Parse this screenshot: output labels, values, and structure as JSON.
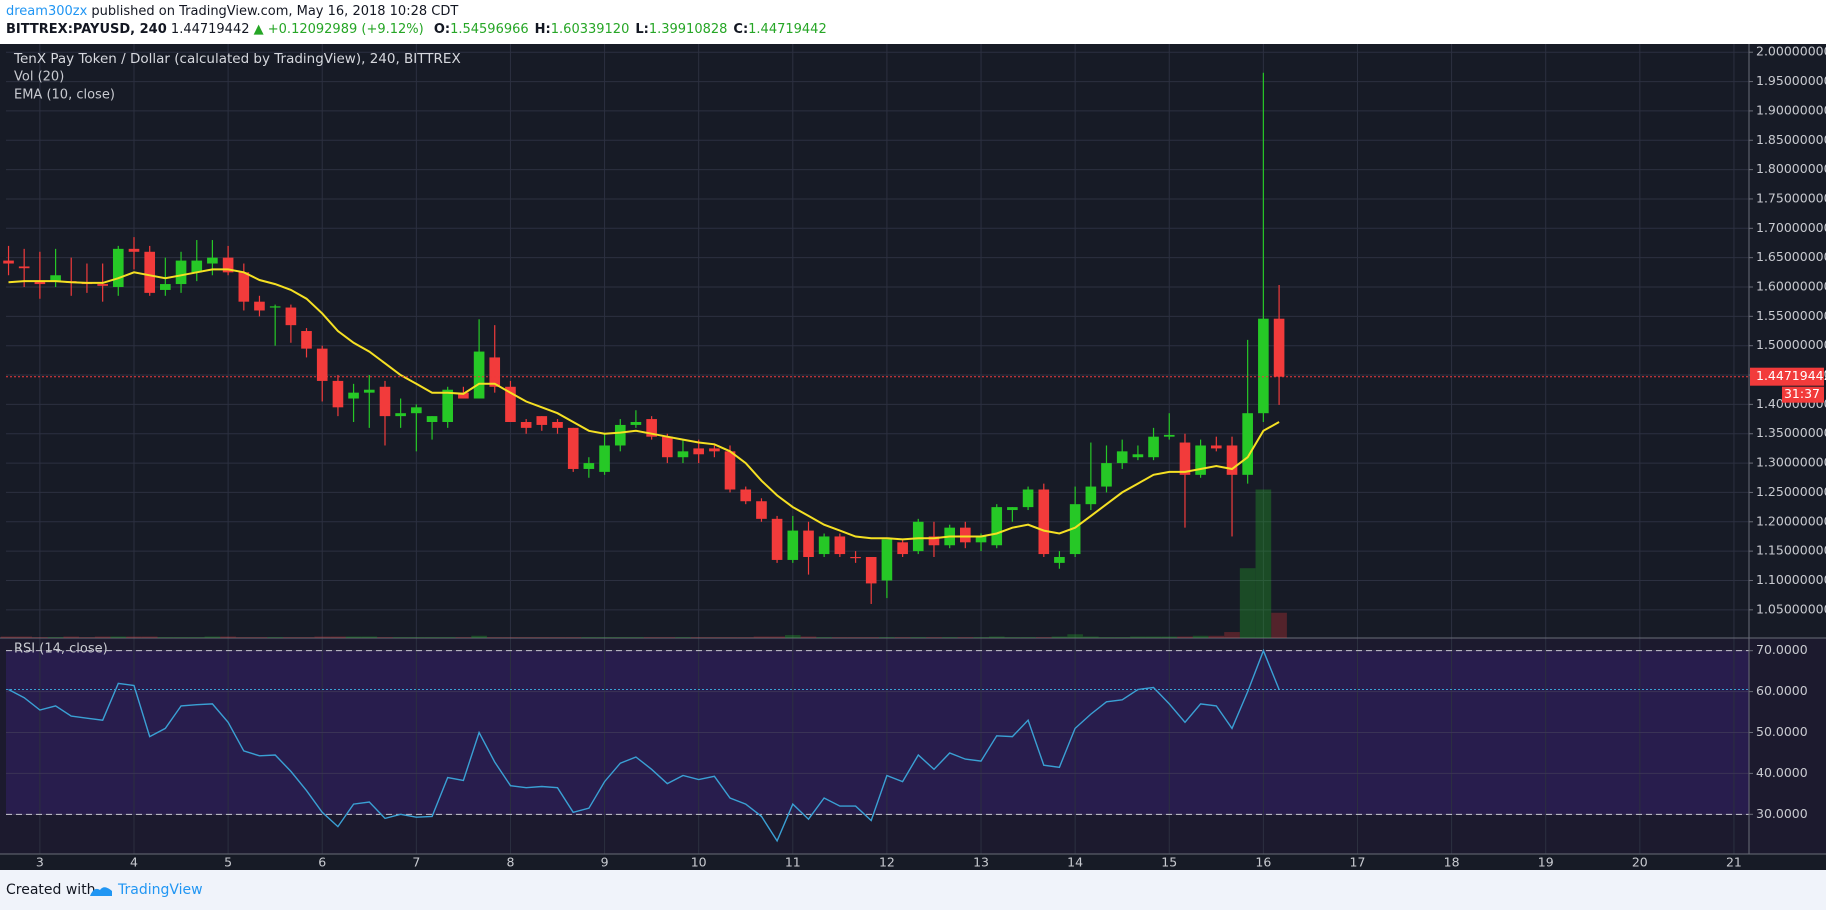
{
  "header": {
    "author": "dream300zx",
    "published": "published on TradingView.com, May 16, 2018 10:28 CDT",
    "symbol": "BITTREX:PAYUSD, 240",
    "last": "1.44719442",
    "change": "▲ +0.12092989 (+9.12%)",
    "ohlc": [
      {
        "key": "O:",
        "value": "1.54596966"
      },
      {
        "key": "H:",
        "value": "1.60339120"
      },
      {
        "key": "L:",
        "value": "1.39910828"
      },
      {
        "key": "C:",
        "value": "1.44719442"
      }
    ]
  },
  "footer": {
    "created": "Created with",
    "brand": "TradingView"
  },
  "chart_data": {
    "type": "candlestick",
    "title": "TenX Pay Token / Dollar (calculated by TradingView), 240, BITTREX",
    "volume_label": "Vol (20)",
    "ema_label": "EMA (10, close)",
    "rsi_label": "RSI (14, close)",
    "countdown": "31:37",
    "up_color": "#26c826",
    "down_color": "#f23b3b",
    "ema_color": "#f5e023",
    "rsi_color": "#3aa0d4",
    "x": [
      2.667,
      2.833,
      3,
      3.167,
      3.333,
      3.5,
      3.667,
      3.833,
      4,
      4.167,
      4.333,
      4.5,
      4.667,
      4.833,
      5,
      5.167,
      5.333,
      5.5,
      5.667,
      5.833,
      6,
      6.167,
      6.333,
      6.5,
      6.667,
      6.833,
      7,
      7.167,
      7.333,
      7.5,
      7.667,
      7.833,
      8,
      8.167,
      8.333,
      8.5,
      8.667,
      8.833,
      9,
      9.167,
      9.333,
      9.5,
      9.667,
      9.833,
      10,
      10.167,
      10.333,
      10.5,
      10.667,
      10.833,
      11,
      11.167,
      11.333,
      11.5,
      11.667,
      11.833,
      12,
      12.167,
      12.333,
      12.5,
      12.667,
      12.833,
      13,
      13.167,
      13.333,
      13.5,
      13.667,
      13.833,
      14,
      14.167,
      14.333,
      14.5,
      14.667,
      14.833,
      15,
      15.167,
      15.333,
      15.5,
      15.667,
      15.833,
      16,
      16.167
    ],
    "open": [
      1.645,
      1.635,
      1.61,
      1.61,
      1.61,
      1.608,
      1.605,
      1.6,
      1.665,
      1.66,
      1.595,
      1.605,
      1.625,
      1.64,
      1.65,
      1.625,
      1.575,
      1.565,
      1.565,
      1.525,
      1.495,
      1.44,
      1.41,
      1.42,
      1.43,
      1.38,
      1.385,
      1.37,
      1.37,
      1.42,
      1.41,
      1.48,
      1.43,
      1.37,
      1.38,
      1.37,
      1.36,
      1.29,
      1.285,
      1.33,
      1.365,
      1.375,
      1.345,
      1.31,
      1.325,
      1.325,
      1.32,
      1.255,
      1.235,
      1.205,
      1.135,
      1.185,
      1.145,
      1.175,
      1.14,
      1.14,
      1.1,
      1.165,
      1.15,
      1.175,
      1.16,
      1.19,
      1.165,
      1.16,
      1.22,
      1.225,
      1.255,
      1.13,
      1.145,
      1.23,
      1.26,
      1.3,
      1.31,
      1.31,
      1.345,
      1.335,
      1.28,
      1.33,
      1.33,
      1.28,
      1.385,
      1.54596966
    ],
    "high": [
      1.67,
      1.665,
      1.66,
      1.665,
      1.65,
      1.64,
      1.64,
      1.67,
      1.685,
      1.67,
      1.65,
      1.66,
      1.68,
      1.68,
      1.67,
      1.64,
      1.585,
      1.57,
      1.57,
      1.53,
      1.5,
      1.45,
      1.435,
      1.45,
      1.44,
      1.41,
      1.4,
      1.38,
      1.43,
      1.43,
      1.545,
      1.535,
      1.44,
      1.375,
      1.38,
      1.375,
      1.36,
      1.31,
      1.35,
      1.375,
      1.39,
      1.38,
      1.35,
      1.34,
      1.34,
      1.33,
      1.33,
      1.26,
      1.24,
      1.21,
      1.21,
      1.2,
      1.18,
      1.18,
      1.15,
      1.14,
      1.17,
      1.17,
      1.205,
      1.2,
      1.195,
      1.2,
      1.18,
      1.23,
      1.225,
      1.26,
      1.265,
      1.15,
      1.26,
      1.335,
      1.33,
      1.34,
      1.33,
      1.36,
      1.385,
      1.35,
      1.34,
      1.345,
      1.345,
      1.51,
      1.965,
      1.6033912
    ],
    "low": [
      1.62,
      1.6,
      1.58,
      1.6,
      1.585,
      1.59,
      1.575,
      1.585,
      1.63,
      1.585,
      1.585,
      1.59,
      1.61,
      1.62,
      1.62,
      1.56,
      1.55,
      1.5,
      1.505,
      1.48,
      1.405,
      1.38,
      1.37,
      1.36,
      1.33,
      1.36,
      1.32,
      1.34,
      1.36,
      1.41,
      1.41,
      1.42,
      1.37,
      1.35,
      1.355,
      1.35,
      1.285,
      1.275,
      1.28,
      1.32,
      1.36,
      1.34,
      1.3,
      1.3,
      1.3,
      1.31,
      1.25,
      1.23,
      1.2,
      1.13,
      1.13,
      1.11,
      1.14,
      1.14,
      1.13,
      1.06,
      1.07,
      1.14,
      1.145,
      1.14,
      1.155,
      1.155,
      1.15,
      1.155,
      1.2,
      1.22,
      1.14,
      1.12,
      1.14,
      1.22,
      1.25,
      1.29,
      1.305,
      1.305,
      1.34,
      1.19,
      1.275,
      1.32,
      1.175,
      1.265,
      1.37,
      1.39910828
    ],
    "close": [
      1.64,
      1.632,
      1.605,
      1.62,
      1.607,
      1.605,
      1.602,
      1.665,
      1.66,
      1.59,
      1.605,
      1.645,
      1.645,
      1.65,
      1.625,
      1.575,
      1.56,
      1.567,
      1.535,
      1.495,
      1.44,
      1.395,
      1.42,
      1.425,
      1.38,
      1.385,
      1.395,
      1.38,
      1.425,
      1.41,
      1.49,
      1.43,
      1.37,
      1.36,
      1.365,
      1.36,
      1.29,
      1.3,
      1.33,
      1.365,
      1.37,
      1.345,
      1.31,
      1.32,
      1.315,
      1.32,
      1.255,
      1.235,
      1.205,
      1.135,
      1.185,
      1.14,
      1.175,
      1.145,
      1.138,
      1.095,
      1.17,
      1.145,
      1.2,
      1.16,
      1.19,
      1.165,
      1.175,
      1.225,
      1.225,
      1.255,
      1.145,
      1.14,
      1.23,
      1.26,
      1.3,
      1.32,
      1.315,
      1.345,
      1.348,
      1.28,
      1.33,
      1.325,
      1.28,
      1.385,
      1.546,
      1.44719442
    ],
    "volume": [
      1,
      1,
      0.5,
      0.5,
      1,
      0.5,
      1,
      1,
      1,
      1,
      0.5,
      0.5,
      0.5,
      1,
      1,
      0.5,
      0.5,
      0.5,
      0.5,
      0.5,
      1,
      1,
      1,
      1,
      0.5,
      0.5,
      0.5,
      0.5,
      0.5,
      0.5,
      1.5,
      0.5,
      0.5,
      0.5,
      0.5,
      0.5,
      0.5,
      0.5,
      0.5,
      0.5,
      0.5,
      0.5,
      0.5,
      0.5,
      0.5,
      0.5,
      0.5,
      0.5,
      1,
      1,
      2,
      1,
      0.5,
      0.5,
      0.5,
      0.5,
      0.5,
      0.5,
      0.5,
      0.5,
      0.5,
      0.5,
      0.5,
      1,
      0.5,
      0.5,
      0.5,
      1,
      2.5,
      1,
      0.5,
      0.5,
      1,
      1,
      1,
      1,
      1.5,
      1.5,
      4,
      47,
      100,
      17
    ],
    "ema": [
      1.608,
      1.61,
      1.61,
      1.61,
      1.608,
      1.607,
      1.607,
      1.615,
      1.625,
      1.62,
      1.615,
      1.62,
      1.625,
      1.63,
      1.63,
      1.625,
      1.612,
      1.605,
      1.595,
      1.58,
      1.555,
      1.525,
      1.505,
      1.49,
      1.47,
      1.45,
      1.435,
      1.42,
      1.42,
      1.418,
      1.435,
      1.435,
      1.42,
      1.405,
      1.395,
      1.385,
      1.37,
      1.355,
      1.35,
      1.352,
      1.355,
      1.35,
      1.345,
      1.34,
      1.335,
      1.332,
      1.32,
      1.3,
      1.27,
      1.245,
      1.225,
      1.21,
      1.195,
      1.185,
      1.175,
      1.172,
      1.172,
      1.17,
      1.172,
      1.172,
      1.175,
      1.175,
      1.175,
      1.18,
      1.19,
      1.195,
      1.185,
      1.18,
      1.19,
      1.21,
      1.23,
      1.25,
      1.265,
      1.28,
      1.285,
      1.285,
      1.29,
      1.295,
      1.29,
      1.31,
      1.355,
      1.37
    ],
    "rsi": [
      60.5,
      58.5,
      55.5,
      56.5,
      54,
      53.5,
      53,
      62,
      61.5,
      49,
      51,
      56.5,
      56.8,
      57,
      52.5,
      45.5,
      44.3,
      44.5,
      40.5,
      35.8,
      30.5,
      27,
      32.5,
      33,
      29,
      30,
      29.3,
      29.5,
      39,
      38.3,
      50,
      42.8,
      37,
      36.5,
      36.8,
      36.5,
      30.5,
      31.5,
      38,
      42.5,
      44,
      41,
      37.5,
      39.5,
      38.5,
      39.3,
      34,
      32.5,
      29.5,
      23.5,
      32.5,
      28.8,
      34,
      32,
      32,
      28.5,
      39.5,
      38,
      44.5,
      41,
      45,
      43.5,
      43,
      49.2,
      49,
      53,
      42,
      41.5,
      51,
      54.5,
      57.5,
      58,
      60.5,
      61,
      57,
      52.5,
      57,
      56.5,
      51,
      60,
      70,
      60.5
    ],
    "xlim": [
      2.64,
      21.16
    ],
    "xticks": [
      3,
      4,
      5,
      6,
      7,
      8,
      9,
      10,
      11,
      12,
      13,
      14,
      15,
      16,
      17,
      18,
      19,
      20,
      21
    ],
    "ylim": [
      1.002,
      2.014
    ],
    "yticks": [
      {
        "value": 1.05,
        "label": "1.05000000"
      },
      {
        "value": 1.1,
        "label": "1.10000000"
      },
      {
        "value": 1.15,
        "label": "1.15000000"
      },
      {
        "value": 1.2,
        "label": "1.20000000"
      },
      {
        "value": 1.25,
        "label": "1.25000000"
      },
      {
        "value": 1.3,
        "label": "1.30000000"
      },
      {
        "value": 1.35,
        "label": "1.35000000"
      },
      {
        "value": 1.4,
        "label": "1.40000000"
      },
      {
        "value": 1.45,
        "label": "1.45000000"
      },
      {
        "value": 1.5,
        "label": "1.50000000"
      },
      {
        "value": 1.55,
        "label": "1.55000000"
      },
      {
        "value": 1.6,
        "label": "1.60000000"
      },
      {
        "value": 1.65,
        "label": "1.65000000"
      },
      {
        "value": 1.7,
        "label": "1.70000000"
      },
      {
        "value": 1.75,
        "label": "1.75000000"
      },
      {
        "value": 1.8,
        "label": "1.80000000"
      },
      {
        "value": 1.85,
        "label": "1.85000000"
      },
      {
        "value": 1.9,
        "label": "1.90000000"
      },
      {
        "value": 1.95,
        "label": "1.95000000"
      },
      {
        "value": 2.0,
        "label": "2.00000000"
      }
    ],
    "rsi_ylim": [
      20.3,
      73.1
    ],
    "rsi_yticks": [
      {
        "value": 30,
        "label": "30.0000"
      },
      {
        "value": 40,
        "label": "40.0000"
      },
      {
        "value": 50,
        "label": "50.0000"
      },
      {
        "value": 60,
        "label": "60.0000"
      },
      {
        "value": 70,
        "label": "70.0000"
      }
    ],
    "rsi_levels": [
      70,
      30
    ],
    "grid": true
  }
}
